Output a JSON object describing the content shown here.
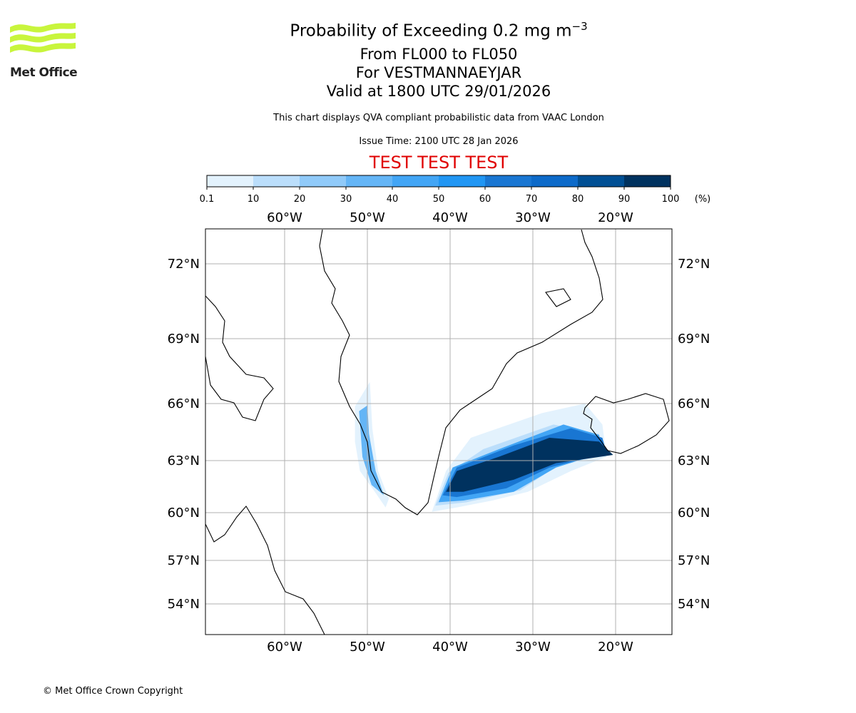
{
  "logo": {
    "text": "Met Office"
  },
  "title": {
    "main": "Probability of Exceeding 0.2 mg m",
    "superscript": "−3",
    "levels": "From FL000 to FL050",
    "volcano": "For VESTMANNAEYJAR",
    "valid": "Valid at 1800 UTC 29/01/2026"
  },
  "subtitle": "This chart displays QVA compliant probabilistic data from VAAC London",
  "issue_time": "Issue Time: 2100 UTC 28 Jan 2026",
  "test_banner": "TEST TEST TEST",
  "copyright": "© Met Office Crown Copyright",
  "colorbar": {
    "unit": "(%)",
    "ticks": [
      "0.1",
      "10",
      "20",
      "30",
      "40",
      "50",
      "60",
      "70",
      "80",
      "90",
      "100"
    ],
    "colors": [
      "#e3f2fd",
      "#bbdefb",
      "#90caf9",
      "#64b5f6",
      "#42a5f5",
      "#2196f3",
      "#1976d2",
      "#0d6ac9",
      "#004f94",
      "#00325f"
    ]
  },
  "map": {
    "lon_ticks": [
      {
        "lon": -60,
        "label": "60°W"
      },
      {
        "lon": -50,
        "label": "50°W"
      },
      {
        "lon": -40,
        "label": "40°W"
      },
      {
        "lon": -30,
        "label": "30°W"
      },
      {
        "lon": -20,
        "label": "20°W"
      }
    ],
    "lat_ticks": [
      {
        "lat": 72,
        "label": "72°N"
      },
      {
        "lat": 69,
        "label": "69°N"
      },
      {
        "lat": 66,
        "label": "66°N"
      },
      {
        "lat": 63,
        "label": "63°N"
      },
      {
        "lat": 60,
        "label": "60°N"
      },
      {
        "lat": 57,
        "label": "57°N"
      },
      {
        "lat": 54,
        "label": "54°N"
      }
    ],
    "plume_layers": [
      {
        "level": "0.1-10",
        "color": "#e3f2fd",
        "points": [
          [
            -42.2,
            60.05
          ],
          [
            -40.5,
            62.4
          ],
          [
            -37.5,
            64.2
          ],
          [
            -28.9,
            65.5
          ],
          [
            -23.7,
            66.0
          ],
          [
            -21.6,
            64.9
          ],
          [
            -21.1,
            63.2
          ],
          [
            -25.4,
            62.4
          ],
          [
            -30.6,
            61.2
          ],
          [
            -34.9,
            60.7
          ],
          [
            -39.2,
            60.3
          ]
        ]
      },
      {
        "level": "10-30",
        "color": "#bbdefb",
        "points": [
          [
            -41.8,
            60.4
          ],
          [
            -40.2,
            62.3
          ],
          [
            -36.0,
            63.6
          ],
          [
            -27.5,
            64.9
          ],
          [
            -22.0,
            64.4
          ],
          [
            -21.5,
            63.3
          ],
          [
            -27.0,
            62.7
          ],
          [
            -31.5,
            61.3
          ],
          [
            -38.0,
            60.6
          ]
        ]
      },
      {
        "level": "30-60",
        "color": "#42a5f5",
        "points": [
          [
            -41.4,
            60.6
          ],
          [
            -39.7,
            62.6
          ],
          [
            -34.1,
            63.6
          ],
          [
            -26.3,
            64.9
          ],
          [
            -22.0,
            64.35
          ],
          [
            -21.6,
            63.4
          ],
          [
            -27.2,
            62.6
          ],
          [
            -32.3,
            61.2
          ],
          [
            -38.4,
            60.7
          ]
        ]
      },
      {
        "level": "60-80",
        "color": "#1976d2",
        "points": [
          [
            -40.9,
            61.0
          ],
          [
            -39.2,
            62.6
          ],
          [
            -32.3,
            63.8
          ],
          [
            -25.4,
            64.7
          ],
          [
            -21.6,
            64.2
          ],
          [
            -21.1,
            63.4
          ],
          [
            -28.0,
            62.6
          ],
          [
            -33.2,
            61.4
          ],
          [
            -39.2,
            60.9
          ]
        ]
      },
      {
        "level": "90-100",
        "color": "#00325f",
        "points": [
          [
            -40.5,
            61.2
          ],
          [
            -39.2,
            62.4
          ],
          [
            -34.1,
            63.2
          ],
          [
            -28.0,
            64.2
          ],
          [
            -22.0,
            64.0
          ],
          [
            -20.3,
            63.3
          ],
          [
            -27.2,
            62.85
          ],
          [
            -32.3,
            61.9
          ],
          [
            -38.4,
            61.2
          ]
        ]
      },
      {
        "level": "0.1-10",
        "color": "#e3f2fd",
        "points": [
          [
            -51.5,
            65.85
          ],
          [
            -49.7,
            67.0
          ],
          [
            -49.4,
            64.7
          ],
          [
            -48.7,
            62.4
          ],
          [
            -47.4,
            60.8
          ],
          [
            -47.8,
            60.3
          ],
          [
            -49.1,
            61.2
          ],
          [
            -50.9,
            62.4
          ],
          [
            -51.5,
            64.0
          ]
        ]
      },
      {
        "level": "30-60",
        "color": "#64b5f6",
        "points": [
          [
            -51.0,
            65.6
          ],
          [
            -50.0,
            65.9
          ],
          [
            -49.8,
            64.4
          ],
          [
            -49.0,
            62.4
          ],
          [
            -48.0,
            61.0
          ],
          [
            -49.5,
            61.6
          ],
          [
            -50.6,
            63.2
          ]
        ]
      }
    ]
  }
}
